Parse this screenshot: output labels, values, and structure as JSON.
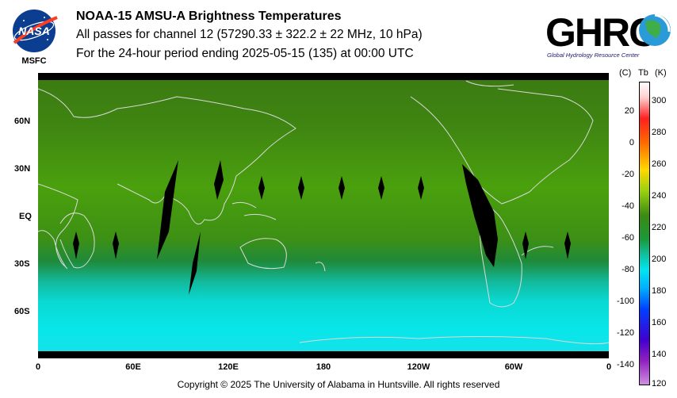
{
  "header": {
    "title": "NOAA-15 AMSU-A Brightness Temperatures",
    "subtitle": "All passes for channel 12 (57290.33 ± 322.2 ± 22 MHz, 10 hPa)",
    "period": "For the 24-hour period ending 2025-05-15 (135) at 00:00 UTC"
  },
  "logos": {
    "nasa_text": "NASA",
    "msfc_text": "MSFC",
    "ghrc_text": "GHRC",
    "ghrc_subtitle": "Global Hydrology Resource Center"
  },
  "map": {
    "lat_labels": [
      "60N",
      "30N",
      "EQ",
      "30S",
      "60S"
    ],
    "lon_labels": [
      "0",
      "60E",
      "120E",
      "180",
      "120W",
      "60W",
      "0"
    ]
  },
  "colorbar": {
    "unit_c": "(C)",
    "unit_tb": "Tb",
    "unit_k": "(K)",
    "celsius_ticks": [
      "20",
      "0",
      "-20",
      "-40",
      "-60",
      "-80",
      "-100",
      "-120",
      "-140"
    ],
    "kelvin_ticks": [
      "300",
      "280",
      "260",
      "240",
      "220",
      "200",
      "180",
      "160",
      "140",
      "120"
    ],
    "range_k": [
      120,
      310
    ]
  },
  "footer": {
    "copyright": "Copyright © 2025 The University of Alabama in Huntsville.  All rights reserved"
  }
}
